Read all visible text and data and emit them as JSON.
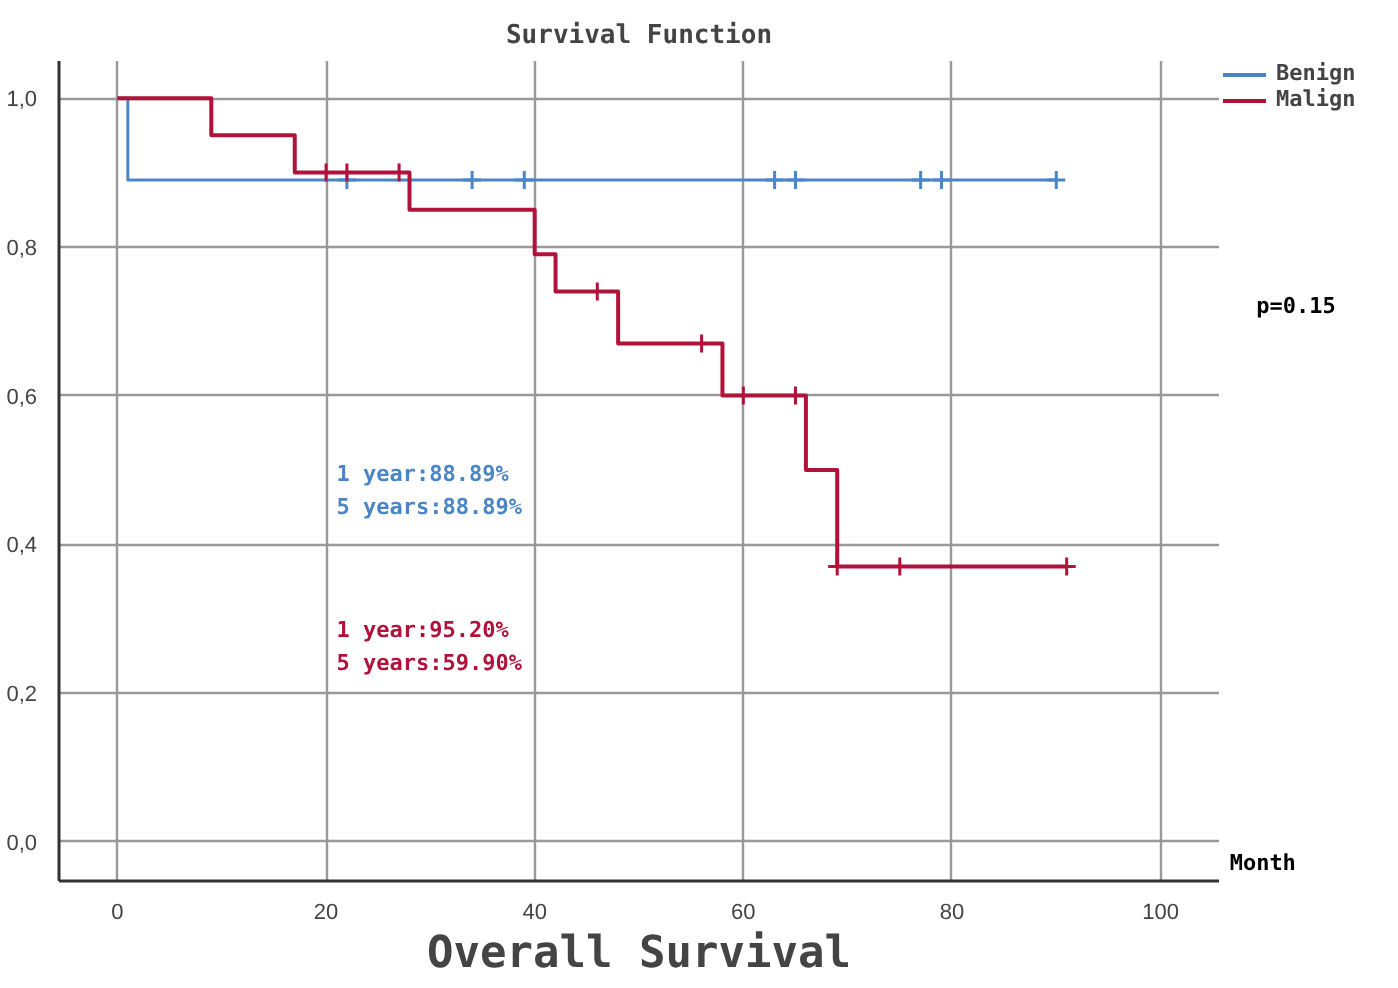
{
  "chart_data": {
    "type": "step",
    "title": "Survival Function",
    "xlabel": "Overall Survival",
    "annotations": [
      "Month",
      "p=0.15",
      "1 year:88.89%",
      "5 years:88.89%",
      "1 year:95.20%",
      "5 years:59.90%"
    ],
    "xlim": [
      -5.6,
      105.6
    ],
    "ylim": [
      -0.053,
      1.05
    ],
    "xticks": [
      0,
      20,
      40,
      60,
      80,
      100
    ],
    "yticks": [
      {
        "value": 0,
        "label": "0,0"
      },
      {
        "value": 0.2,
        "label": "0,2"
      },
      {
        "value": 0.4,
        "label": "0,4"
      },
      {
        "value": 0.6,
        "label": "0,6"
      },
      {
        "value": 0.8,
        "label": "0,8"
      },
      {
        "value": 1,
        "label": "1,0"
      }
    ],
    "grid": true,
    "legend": "top right",
    "series": [
      {
        "name": "Benign",
        "color": "#4a86c5",
        "x": [
          0,
          1,
          90
        ],
        "values": [
          1,
          0.89,
          0.89
        ]
      },
      {
        "name": "Malign",
        "color": "#b0123a",
        "x": [
          0,
          9,
          17,
          28,
          40,
          42,
          48,
          58,
          66,
          69,
          91
        ],
        "values": [
          1,
          0.95,
          0.9,
          0.85,
          0.79,
          0.74,
          0.67,
          0.6,
          0.5,
          0.37,
          0.37
        ]
      },
      {
        "type": "scatter",
        "marker": "cross",
        "color": "#4a86c5",
        "x": [
          22,
          34,
          39,
          63,
          65,
          77,
          79,
          90
        ],
        "values": [
          0.89,
          0.89,
          0.89,
          0.89,
          0.89,
          0.89,
          0.89,
          0.89
        ]
      },
      {
        "type": "scatter",
        "marker": "cross",
        "color": "#b0123a",
        "x": [
          20,
          22,
          27,
          46,
          56,
          60,
          65,
          69,
          75,
          91
        ],
        "values": [
          0.9,
          0.9,
          0.9,
          0.74,
          0.67,
          0.6,
          0.6,
          0.37,
          0.37,
          0.37
        ]
      }
    ]
  }
}
